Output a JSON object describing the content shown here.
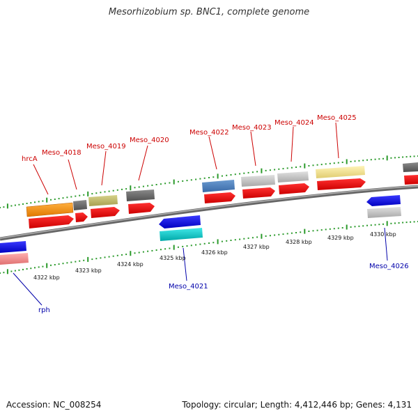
{
  "title": "Mesorhizobium sp. BNC1, complete genome",
  "footer": {
    "accession": "Accession: NC_008254",
    "summary": "Topology: circular; Length: 4,412,446 bp; Genes: 4,131"
  },
  "colors": {
    "backbone": "#8c8c8c",
    "tick": "#2a9a2a",
    "forward_label": "#cc0000",
    "reverse_label": "#0000aa",
    "axis_label": "#111111"
  },
  "ruler_labels": [
    "4322 kbp",
    "4323 kbp",
    "4324 kbp",
    "4325 kbp",
    "4326 kbp",
    "4327 kbp",
    "4328 kbp",
    "4329 kbp",
    "4330 kbp"
  ],
  "gene_labels": [
    {
      "id": "hrcA",
      "text": "hrcA",
      "strand": "forward"
    },
    {
      "id": "meso4018",
      "text": "Meso_4018",
      "strand": "forward"
    },
    {
      "id": "meso4019",
      "text": "Meso_4019",
      "strand": "forward"
    },
    {
      "id": "meso4020",
      "text": "Meso_4020",
      "strand": "forward"
    },
    {
      "id": "meso4022",
      "text": "Meso_4022",
      "strand": "forward"
    },
    {
      "id": "meso4023",
      "text": "Meso_4023",
      "strand": "forward"
    },
    {
      "id": "meso4024",
      "text": "Meso_4024",
      "strand": "forward"
    },
    {
      "id": "meso4025",
      "text": "Meso_4025",
      "strand": "forward"
    },
    {
      "id": "meso4021",
      "text": "Meso_4021",
      "strand": "reverse"
    },
    {
      "id": "meso4026",
      "text": "Meso_4026",
      "strand": "reverse"
    },
    {
      "id": "rph",
      "text": "rph",
      "strand": "reverse"
    }
  ]
}
